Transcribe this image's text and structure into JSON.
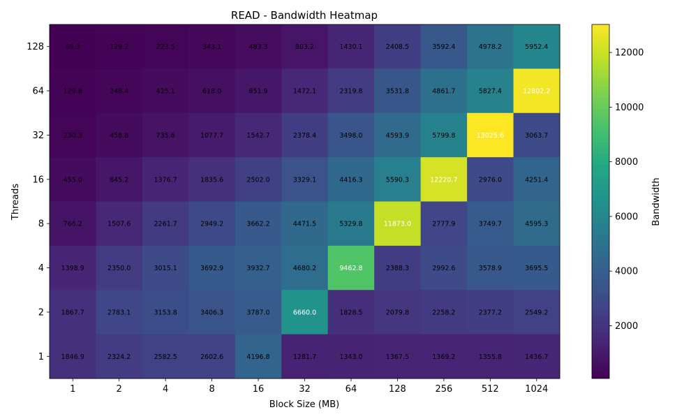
{
  "chart_data": {
    "type": "heatmap",
    "title": "READ - Bandwidth Heatmap",
    "xlabel": "Block Size (MB)",
    "ylabel": "Threads",
    "x_categories": [
      "1",
      "2",
      "4",
      "8",
      "16",
      "32",
      "64",
      "128",
      "256",
      "512",
      "1024"
    ],
    "y_categories": [
      "128",
      "64",
      "32",
      "16",
      "8",
      "4",
      "2",
      "1"
    ],
    "values": [
      [
        69.3,
        129.2,
        223.5,
        343.1,
        483.3,
        803.2,
        1430.1,
        2408.5,
        3592.4,
        4978.2,
        5952.4
      ],
      [
        129.8,
        248.4,
        425.1,
        618.0,
        851.9,
        1472.1,
        2319.8,
        3531.8,
        4861.7,
        5827.4,
        12802.2
      ],
      [
        230.3,
        458.8,
        735.6,
        1077.7,
        1542.7,
        2378.4,
        3498.0,
        4593.9,
        5799.8,
        13025.6,
        3063.7
      ],
      [
        455.0,
        845.2,
        1376.7,
        1835.6,
        2502.0,
        3329.1,
        4416.3,
        5590.3,
        12220.7,
        2976.0,
        4251.4
      ],
      [
        766.2,
        1507.6,
        2261.7,
        2949.2,
        3662.2,
        4471.5,
        5329.8,
        11873.0,
        2777.9,
        3749.7,
        4595.3
      ],
      [
        1398.9,
        2350.0,
        3015.1,
        3692.9,
        3932.7,
        4680.2,
        9462.8,
        2388.3,
        2992.6,
        3578.9,
        3695.5
      ],
      [
        1867.7,
        2783.1,
        3153.8,
        3406.3,
        3787.0,
        6660.0,
        1828.5,
        2079.8,
        2258.2,
        2377.2,
        2549.2
      ],
      [
        1846.9,
        2324.2,
        2582.5,
        2602.6,
        4196.8,
        1281.7,
        1343.0,
        1367.5,
        1369.2,
        1355.8,
        1436.7
      ]
    ],
    "value_labels": [
      [
        "69.3",
        "129.2",
        "223.5",
        "343.1",
        "483.3",
        "803.2",
        "1430.1",
        "2408.5",
        "3592.4",
        "4978.2",
        "5952.4"
      ],
      [
        "129.8",
        "248.4",
        "425.1",
        "618.0",
        "851.9",
        "1472.1",
        "2319.8",
        "3531.8",
        "4861.7",
        "5827.4",
        "12802.2"
      ],
      [
        "230.3",
        "458.8",
        "735.6",
        "1077.7",
        "1542.7",
        "2378.4",
        "3498.0",
        "4593.9",
        "5799.8",
        "13025.6",
        "3063.7"
      ],
      [
        "455.0",
        "845.2",
        "1376.7",
        "1835.6",
        "2502.0",
        "3329.1",
        "4416.3",
        "5590.3",
        "12220.7",
        "2976.0",
        "4251.4"
      ],
      [
        "766.2",
        "1507.6",
        "2261.7",
        "2949.2",
        "3662.2",
        "4471.5",
        "5329.8",
        "11873.0",
        "2777.9",
        "3749.7",
        "4595.3"
      ],
      [
        "1398.9",
        "2350.0",
        "3015.1",
        "3692.9",
        "3932.7",
        "4680.2",
        "9462.8",
        "2388.3",
        "2992.6",
        "3578.9",
        "3695.5"
      ],
      [
        "1867.7",
        "2783.1",
        "3153.8",
        "3406.3",
        "3787.0",
        "6660.0",
        "1828.5",
        "2079.8",
        "2258.2",
        "2377.2",
        "2549.2"
      ],
      [
        "1846.9",
        "2324.2",
        "2582.5",
        "2602.6",
        "4196.8",
        "1281.7",
        "1343.0",
        "1367.5",
        "1369.2",
        "1355.8",
        "1436.7"
      ]
    ],
    "colormap": "viridis",
    "colorbar": {
      "label": "Bandwidth",
      "range": [
        69.3,
        13025.6
      ],
      "ticks": [
        2000,
        4000,
        6000,
        8000,
        10000,
        12000
      ],
      "tick_labels": [
        "2000",
        "4000",
        "6000",
        "8000",
        "10000",
        "12000"
      ]
    },
    "label_colors": {
      "dark_cell": "#ffffff",
      "light_cell": "#000000"
    },
    "grid": false
  }
}
